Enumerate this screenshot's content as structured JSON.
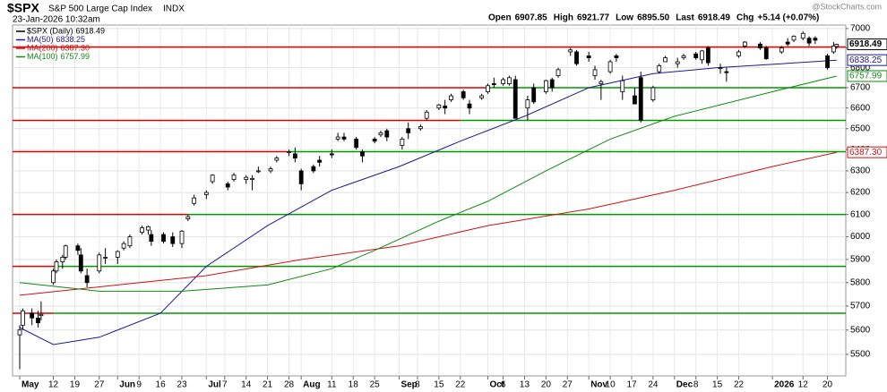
{
  "header": {
    "symbol": "$SPX",
    "name": "S&P 500 Large Cap Index",
    "exchange": "INDX",
    "timestamp": "23-Jan-2026 10:32am",
    "quote": [
      {
        "label": "Open",
        "value": "6907.85"
      },
      {
        "label": "High",
        "value": "6921.77"
      },
      {
        "label": "Low",
        "value": "6895.50"
      },
      {
        "label": "Last",
        "value": "6918.49"
      },
      {
        "label": "Chg",
        "value": "+5.14 (+0.07%)"
      }
    ],
    "watermark": "@StockCharts.com"
  },
  "chart_data": {
    "type": "candlestick",
    "price_label": "$SPX (Daily)",
    "last": 6918.49,
    "last_label": "6918.49",
    "log_scale": true,
    "grid": true,
    "x": [
      "May 1",
      "May 2",
      "May 5",
      "May 7",
      "May 8",
      "May 12",
      "May 13",
      "May 15",
      "May 16",
      "May 20",
      "May 21",
      "May 23",
      "May 27",
      "May 29",
      "Jun 2",
      "Jun 4",
      "Jun 6",
      "Jun 10",
      "Jun 12",
      "Jun 13",
      "Jun 17",
      "Jun 20",
      "Jun 23",
      "Jun 25",
      "Jun 27",
      "Jul 1",
      "Jul 3",
      "Jul 8",
      "Jul 10",
      "Jul 14",
      "Jul 16",
      "Jul 18",
      "Jul 22",
      "Jul 24",
      "Jul 28",
      "Jul 30",
      "Aug 1",
      "Aug 5",
      "Aug 7",
      "Aug 11",
      "Aug 13",
      "Aug 15",
      "Aug 19",
      "Aug 21",
      "Aug 25",
      "Aug 27",
      "Aug 29",
      "Sep 3",
      "Sep 5",
      "Sep 9",
      "Sep 11",
      "Sep 15",
      "Sep 17",
      "Sep 19",
      "Sep 23",
      "Sep 25",
      "Sep 29",
      "Oct 1",
      "Oct 3",
      "Oct 6",
      "Oct 8",
      "Oct 10",
      "Oct 14",
      "Oct 16",
      "Oct 20",
      "Oct 22",
      "Oct 24",
      "Oct 28",
      "Oct 30",
      "Nov 3",
      "Nov 5",
      "Nov 7",
      "Nov 10",
      "Nov 12",
      "Nov 14",
      "Nov 18",
      "Nov 20",
      "Nov 24",
      "Nov 26",
      "Nov 28",
      "Dec 2",
      "Dec 4",
      "Dec 8",
      "Dec 10",
      "Dec 12",
      "Dec 16",
      "Dec 18",
      "Dec 22",
      "Dec 24",
      "Dec 29",
      "Dec 31",
      "Jan 5",
      "Jan 7",
      "Jan 9",
      "Jan 12",
      "Jan 14",
      "Jan 16",
      "Jan 20",
      "Jan 22",
      "Jan 23"
    ],
    "open": [
      5580,
      5620,
      5670,
      5650,
      5660,
      5800,
      5850,
      5890,
      5910,
      5960,
      5920,
      5830,
      5850,
      5910,
      5910,
      5950,
      5960,
      6020,
      6030,
      6010,
      6010,
      6000,
      5970,
      6080,
      6150,
      6190,
      6250,
      6240,
      6260,
      6260,
      6260,
      6300,
      6300,
      6350,
      6390,
      6380,
      6300,
      6320,
      6350,
      6380,
      6450,
      6460,
      6450,
      6390,
      6450,
      6470,
      6490,
      6420,
      6500,
      6500,
      6550,
      6600,
      6610,
      6640,
      6680,
      6620,
      6650,
      6680,
      6720,
      6720,
      6720,
      6740,
      6600,
      6700,
      6680,
      6740,
      6760,
      6880,
      6880,
      6860,
      6760,
      6720,
      6780,
      6860,
      6680,
      6660,
      6750,
      6640,
      6780,
      6830,
      6820,
      6850,
      6870,
      6840,
      6900,
      6800,
      6780,
      6860,
      6910,
      6920,
      6900,
      6880,
      6930,
      6940,
      6950,
      6950,
      6950,
      6860,
      6880,
      6907.85
    ],
    "high": [
      5620,
      5690,
      5690,
      5680,
      5720,
      5860,
      5900,
      5920,
      5965,
      5970,
      5950,
      5860,
      5930,
      5950,
      5940,
      5980,
      6010,
      6050,
      6050,
      6030,
      6020,
      6020,
      6030,
      6100,
      6190,
      6210,
      6285,
      6250,
      6290,
      6280,
      6280,
      6320,
      6320,
      6370,
      6400,
      6410,
      6310,
      6330,
      6370,
      6400,
      6480,
      6480,
      6460,
      6400,
      6460,
      6490,
      6500,
      6460,
      6530,
      6520,
      6590,
      6620,
      6640,
      6670,
      6690,
      6640,
      6670,
      6720,
      6750,
      6750,
      6760,
      6760,
      6660,
      6720,
      6740,
      6750,
      6800,
      6900,
      6890,
      6880,
      6810,
      6740,
      6840,
      6870,
      6760,
      6700,
      6780,
      6710,
      6820,
      6860,
      6850,
      6870,
      6880,
      6890,
      6910,
      6820,
      6800,
      6890,
      6935,
      6930,
      6910,
      6910,
      6950,
      6965,
      6985,
      6960,
      6960,
      6870,
      6930,
      6921.77
    ],
    "low": [
      5440,
      5600,
      5620,
      5610,
      5640,
      5790,
      5840,
      5860,
      5900,
      5920,
      5840,
      5780,
      5840,
      5880,
      5880,
      5940,
      5950,
      6010,
      6010,
      5960,
      5970,
      5955,
      5950,
      6070,
      6140,
      6170,
      6240,
      6210,
      6250,
      6240,
      6210,
      6290,
      6290,
      6340,
      6370,
      6340,
      6210,
      6290,
      6320,
      6360,
      6440,
      6440,
      6400,
      6340,
      6430,
      6460,
      6440,
      6400,
      6450,
      6490,
      6540,
      6590,
      6570,
      6630,
      6640,
      6570,
      6640,
      6670,
      6700,
      6710,
      6710,
      6550,
      6540,
      6620,
      6670,
      6680,
      6750,
      6860,
      6810,
      6830,
      6740,
      6640,
      6770,
      6830,
      6640,
      6620,
      6530,
      6630,
      6770,
      6830,
      6800,
      6840,
      6840,
      6820,
      6810,
      6770,
      6730,
      6850,
      6900,
      6890,
      6840,
      6870,
      6910,
      6930,
      6940,
      6910,
      6920,
      6790,
      6870,
      6895.5
    ],
    "close": [
      5600,
      5680,
      5650,
      5630,
      5665,
      5850,
      5890,
      5910,
      5960,
      5940,
      5850,
      5800,
      5920,
      5910,
      5935,
      5970,
      6000,
      6040,
      6045,
      5980,
      5980,
      5970,
      6025,
      6090,
      6175,
      6200,
      6280,
      6225,
      6280,
      6270,
      6265,
      6300,
      6310,
      6360,
      6390,
      6360,
      6240,
      6300,
      6340,
      6375,
      6460,
      6450,
      6410,
      6370,
      6440,
      6480,
      6460,
      6450,
      6480,
      6510,
      6580,
      6615,
      6600,
      6660,
      6650,
      6600,
      6660,
      6710,
      6715,
      6740,
      6750,
      6550,
      6640,
      6630,
      6735,
      6700,
      6790,
      6890,
      6820,
      6850,
      6790,
      6730,
      6830,
      6850,
      6735,
      6620,
      6540,
      6700,
      6810,
      6850,
      6830,
      6860,
      6850,
      6885,
      6825,
      6800,
      6775,
      6880,
      6930,
      6900,
      6845,
      6900,
      6920,
      6960,
      6975,
      6925,
      6940,
      6800,
      6910,
      6918.49
    ],
    "series": [
      {
        "name": "MA(50)",
        "color": "#1a1a8c",
        "last": 6838.25,
        "last_label": "6838.25",
        "x": [
          "May 1",
          "May 12",
          "May 27",
          "Jun 16",
          "Jul 1",
          "Jul 21",
          "Aug 11",
          "Sep 2",
          "Sep 22",
          "Oct 13",
          "Nov 3",
          "Nov 24",
          "Dec 15",
          "Jan 5",
          "Jan 23"
        ],
        "values": [
          5610,
          5540,
          5570,
          5670,
          5870,
          6050,
          6210,
          6320,
          6440,
          6560,
          6700,
          6770,
          6800,
          6820,
          6838.25
        ]
      },
      {
        "name": "MA(200)",
        "color": "#d01010",
        "last": 6387.3,
        "last_label": "6387.30",
        "x": [
          "May 1",
          "Jun 2",
          "Jul 1",
          "Aug 1",
          "Sep 2",
          "Oct 1",
          "Nov 3",
          "Dec 1",
          "Jan 2",
          "Jan 23"
        ],
        "values": [
          5746,
          5790,
          5830,
          5900,
          5960,
          6050,
          6125,
          6210,
          6320,
          6387.3
        ]
      },
      {
        "name": "MA(100)",
        "color": "#118811",
        "last": 6757.99,
        "last_label": "6757.99",
        "x": [
          "May 1",
          "May 27",
          "Jun 23",
          "Jul 21",
          "Aug 11",
          "Aug 25",
          "Sep 15",
          "Oct 1",
          "Oct 20",
          "Nov 10",
          "Dec 1",
          "Jan 2",
          "Jan 23"
        ],
        "values": [
          5800,
          5763,
          5763,
          5790,
          5860,
          5940,
          6070,
          6160,
          6300,
          6450,
          6560,
          6680,
          6757.99
        ]
      }
    ],
    "levels": [
      {
        "value": 6905,
        "color": "#e00000"
      },
      {
        "value": 6700,
        "color": "#e00000",
        "color_after": "#009900",
        "from": "Oct 1"
      },
      {
        "value": 6540,
        "color": "#e00000",
        "color_after": "#009900",
        "from": "Sep 22"
      },
      {
        "value": 6390,
        "color": "#e00000",
        "color_after": "#009900",
        "from": "Jul 28"
      },
      {
        "value": 6100,
        "color": "#e00000",
        "color_after": "#009900",
        "from": "Jun 25"
      },
      {
        "value": 5870,
        "color": "#e00000",
        "color_after": "#009900",
        "from": "May 13"
      },
      {
        "value": 5670,
        "color": "#e00000",
        "color_after": "#009900",
        "from": "May 12"
      }
    ],
    "ylim": [
      5413,
      7018
    ],
    "yticks": [
      5500,
      5600,
      5700,
      5800,
      5900,
      6000,
      6100,
      6200,
      6300,
      6400,
      6500,
      6600,
      6700,
      6800,
      6900,
      7000
    ],
    "xticks": [
      {
        "value": "May 1",
        "label": "May",
        "major": true
      },
      {
        "value": "May 12",
        "label": "12"
      },
      {
        "value": "May 19",
        "label": "19"
      },
      {
        "value": "May 27",
        "label": "27"
      },
      {
        "value": "Jun 2",
        "label": "Jun",
        "major": true
      },
      {
        "value": "Jun 9",
        "label": "9"
      },
      {
        "value": "Jun 16",
        "label": "16"
      },
      {
        "value": "Jun 23",
        "label": "23"
      },
      {
        "value": "Jul 1",
        "label": "Jul",
        "major": true
      },
      {
        "value": "Jul 7",
        "label": "7"
      },
      {
        "value": "Jul 14",
        "label": "14"
      },
      {
        "value": "Jul 21",
        "label": "21"
      },
      {
        "value": "Jul 28",
        "label": "28"
      },
      {
        "value": "Aug 1",
        "label": "Aug",
        "major": true
      },
      {
        "value": "Aug 11",
        "label": "11"
      },
      {
        "value": "Aug 18",
        "label": "18"
      },
      {
        "value": "Aug 25",
        "label": "25"
      },
      {
        "value": "Sep 2",
        "label": "Sep",
        "major": true
      },
      {
        "value": "Sep 8",
        "label": "8"
      },
      {
        "value": "Sep 15",
        "label": "15"
      },
      {
        "value": "Sep 22",
        "label": "22"
      },
      {
        "value": "Oct 1",
        "label": "Oct",
        "major": true
      },
      {
        "value": "Oct 6",
        "label": "6"
      },
      {
        "value": "Oct 13",
        "label": "13"
      },
      {
        "value": "Oct 20",
        "label": "20"
      },
      {
        "value": "Oct 27",
        "label": "27"
      },
      {
        "value": "Nov 3",
        "label": "Nov",
        "major": true
      },
      {
        "value": "Nov 10",
        "label": "10"
      },
      {
        "value": "Nov 17",
        "label": "17"
      },
      {
        "value": "Nov 24",
        "label": "24"
      },
      {
        "value": "Dec 1",
        "label": "Dec",
        "major": true
      },
      {
        "value": "Dec 8",
        "label": "8"
      },
      {
        "value": "Dec 15",
        "label": "15"
      },
      {
        "value": "Dec 22",
        "label": "22"
      },
      {
        "value": "Jan 2",
        "label": "2026",
        "major": true
      },
      {
        "value": "Jan 12",
        "label": "12"
      },
      {
        "value": "Jan 20",
        "label": "20"
      }
    ]
  }
}
